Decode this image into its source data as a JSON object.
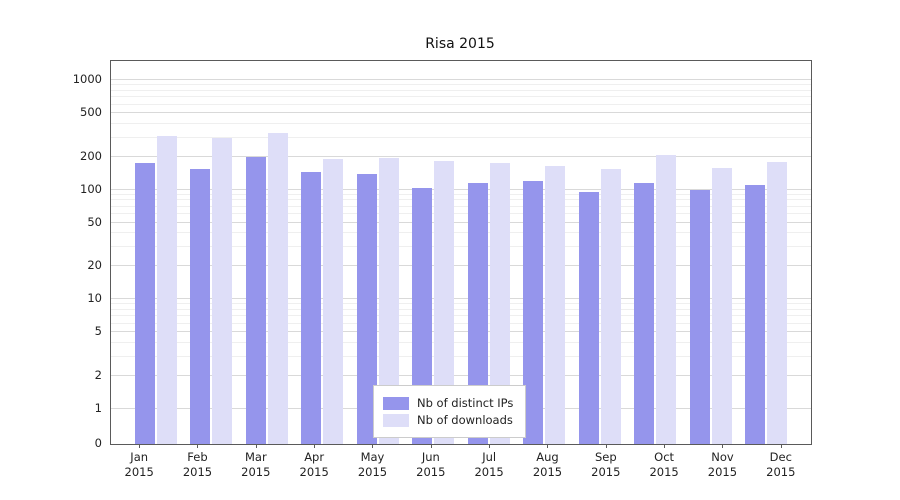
{
  "chart_data": {
    "type": "bar",
    "title": "Risa 2015",
    "scale": "symlog",
    "ylim": [
      0,
      1500
    ],
    "yticks": [
      0,
      1,
      2,
      5,
      10,
      20,
      50,
      100,
      200,
      500,
      1000
    ],
    "categories": [
      "Jan 2015",
      "Feb 2015",
      "Mar 2015",
      "Apr 2015",
      "May 2015",
      "Jun 2015",
      "Jul 2015",
      "Aug 2015",
      "Sep 2015",
      "Oct 2015",
      "Nov 2015",
      "Dec 2015"
    ],
    "series": [
      {
        "name": "Nb of distinct IPs",
        "color": "#9595ec",
        "values": [
          175,
          155,
          200,
          145,
          140,
          105,
          115,
          120,
          95,
          115,
          100,
          110
        ]
      },
      {
        "name": "Nb of downloads",
        "color": "#dedef8",
        "values": [
          310,
          300,
          330,
          190,
          195,
          185,
          175,
          165,
          155,
          210,
          160,
          180
        ]
      }
    ],
    "legend_position": "lower center",
    "grid": true,
    "xlabel": "",
    "ylabel": ""
  }
}
